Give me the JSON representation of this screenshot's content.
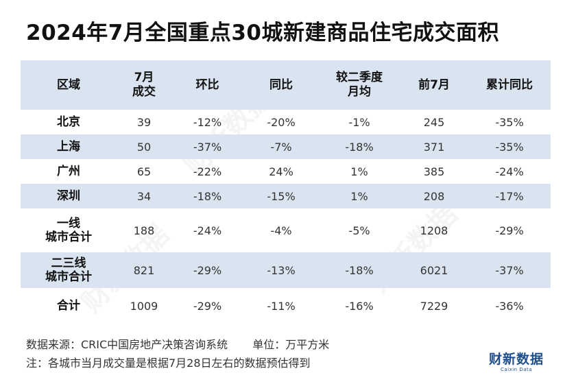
{
  "title": "2024年7月全国重点30城新建商品住宅成交面积",
  "chart_data": {
    "type": "table",
    "title": "2024年7月全国重点30城新建商品住宅成交面积",
    "columns": [
      [
        "区域"
      ],
      [
        "7月",
        "成交"
      ],
      [
        "环比"
      ],
      [
        "同比"
      ],
      [
        "较二季度",
        "月均"
      ],
      [
        "前7月"
      ],
      [
        "累计同比"
      ]
    ],
    "rows": [
      {
        "region": [
          "北京"
        ],
        "cells": [
          "39",
          "-12%",
          "-20%",
          "-1%",
          "245",
          "-35%"
        ]
      },
      {
        "region": [
          "上海"
        ],
        "cells": [
          "50",
          "-37%",
          "-7%",
          "-18%",
          "371",
          "-35%"
        ]
      },
      {
        "region": [
          "广州"
        ],
        "cells": [
          "65",
          "-22%",
          "24%",
          "1%",
          "385",
          "-24%"
        ]
      },
      {
        "region": [
          "深圳"
        ],
        "cells": [
          "34",
          "-18%",
          "-15%",
          "1%",
          "208",
          "-17%"
        ]
      },
      {
        "region": [
          "一线",
          "城市合计"
        ],
        "cells": [
          "188",
          "-24%",
          "-4%",
          "-5%",
          "1208",
          "-29%"
        ]
      },
      {
        "region": [
          "二三线",
          "城市合计"
        ],
        "cells": [
          "821",
          "-29%",
          "-13%",
          "-18%",
          "6021",
          "-37%"
        ]
      },
      {
        "region": [
          "合计"
        ],
        "cells": [
          "1009",
          "-29%",
          "-11%",
          "-16%",
          "7229",
          "-36%"
        ]
      }
    ]
  },
  "footer": {
    "source": "数据来源：CRIC中国房地产决策咨询系统",
    "unit": "单位：万平方米",
    "note": "注：各城市当月成交量是根据7月28日左右的数据预估得到"
  },
  "logo": {
    "cn": "财新数据",
    "en": "Caixin Data"
  },
  "watermark": "财新数据",
  "colors": {
    "header_bg": "#d9e4f0",
    "band_bg": "#d9e4f0",
    "logo": "#1f4e8c"
  }
}
